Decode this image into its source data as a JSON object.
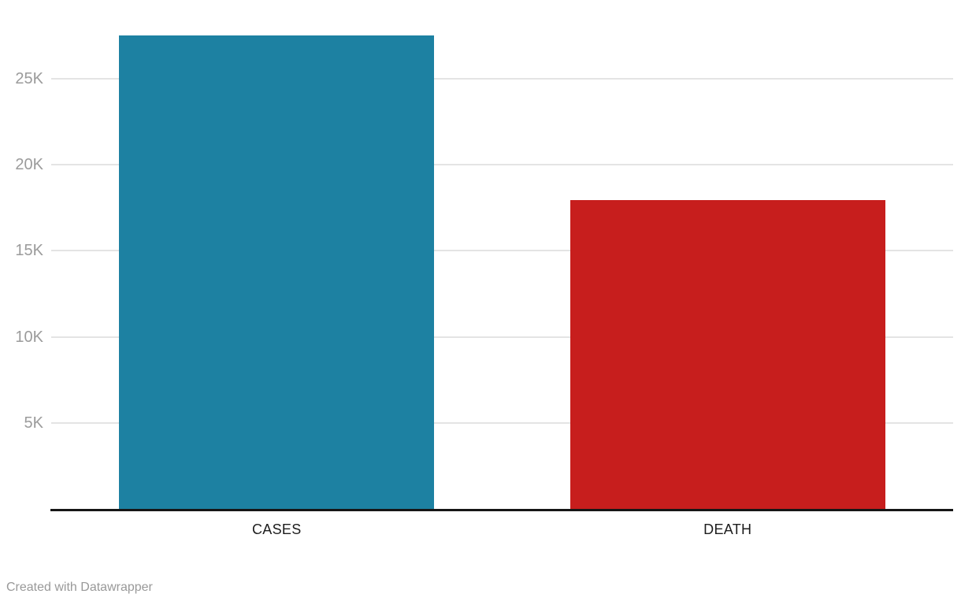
{
  "chart_data": {
    "type": "bar",
    "categories": [
      "CASES",
      "DEATH"
    ],
    "values": [
      27500,
      17950
    ],
    "series_colors": [
      "#1d81a2",
      "#c71e1d"
    ],
    "title": "",
    "xlabel": "",
    "ylabel": "",
    "ylim": [
      0,
      29600
    ],
    "yticks": [
      {
        "value": 5000,
        "label": "5K"
      },
      {
        "value": 10000,
        "label": "10K"
      },
      {
        "value": 15000,
        "label": "15K"
      },
      {
        "value": 20000,
        "label": "20K"
      },
      {
        "value": 25000,
        "label": "25K"
      }
    ],
    "grid": true,
    "legend": false
  },
  "footer": {
    "attribution": "Created with Datawrapper"
  },
  "colors": {
    "background": "#ffffff",
    "gridline": "#e4e4e4",
    "axis_line": "#161616",
    "tick_label": "#9b9b9b",
    "category_label": "#1d1d1d",
    "footer_text": "#999999"
  }
}
